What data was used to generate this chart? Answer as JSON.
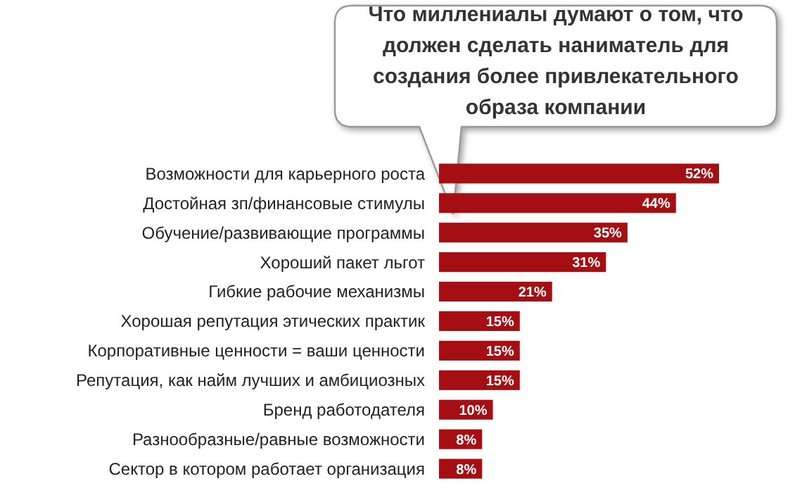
{
  "chart_data": {
    "type": "bar",
    "orientation": "horizontal",
    "title": "Что миллениалы думают о том, что должен сделать наниматель для создания более привлекательного образа компании",
    "categories": [
      "Возможности для карьерного роста",
      "Достойная зп/финансовые стимулы",
      "Обучение/развивающие программы",
      "Хороший пакет льгот",
      "Гибкие рабочие механизмы",
      "Хорошая репутация этических практик",
      "Корпоративные ценности = ваши ценности",
      "Репутация, как найм лучших и амбициозных",
      "Бренд работодателя",
      "Разнообразные/равные возможности",
      "Сектор в котором работает организация"
    ],
    "values": [
      52,
      44,
      35,
      31,
      21,
      15,
      15,
      15,
      10,
      8,
      8
    ],
    "value_labels": [
      "52%",
      "44%",
      "35%",
      "31%",
      "21%",
      "15%",
      "15%",
      "15%",
      "10%",
      "8%",
      "8%"
    ],
    "color": "#a50f14"
  }
}
